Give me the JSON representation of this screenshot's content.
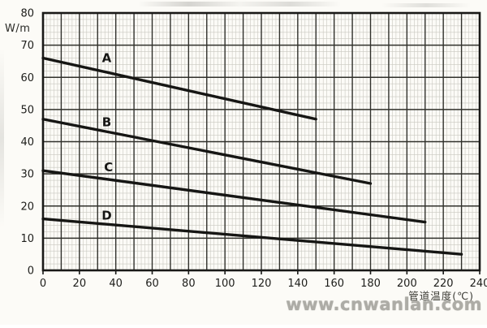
{
  "watermark": {
    "text": "www.cnwanlan.com"
  },
  "chart_data": {
    "type": "line",
    "title": "",
    "xlabel": "管道温度(℃)",
    "ylabel": "W/m",
    "xlim": [
      0,
      240
    ],
    "ylim": [
      0,
      80
    ],
    "x_ticks": [
      0,
      20,
      40,
      60,
      80,
      100,
      120,
      140,
      160,
      180,
      200,
      220,
      240
    ],
    "y_ticks": [
      0,
      10,
      20,
      30,
      40,
      50,
      60,
      70,
      80
    ],
    "grid": {
      "major_step_x": 10,
      "major_step_y": 10,
      "minor_step_x": 2,
      "minor_step_y": 2
    },
    "legend_position": "inline-labels",
    "series": [
      {
        "name": "A",
        "points": [
          [
            0,
            66
          ],
          [
            150,
            47
          ]
        ],
        "label_pos": [
          35,
          66
        ]
      },
      {
        "name": "B",
        "points": [
          [
            0,
            47
          ],
          [
            180,
            27
          ]
        ],
        "label_pos": [
          35,
          46
        ]
      },
      {
        "name": "C",
        "points": [
          [
            0,
            31
          ],
          [
            210,
            15
          ]
        ],
        "label_pos": [
          36,
          32
        ]
      },
      {
        "name": "D",
        "points": [
          [
            0,
            16
          ],
          [
            230,
            5
          ]
        ],
        "label_pos": [
          35,
          17
        ]
      }
    ],
    "colors": {
      "line": "#161614",
      "grid_major": "#30302b",
      "grid_minor": "#c9c8c0",
      "text": "#1d1d1a",
      "background": "#fcfbf7"
    }
  }
}
